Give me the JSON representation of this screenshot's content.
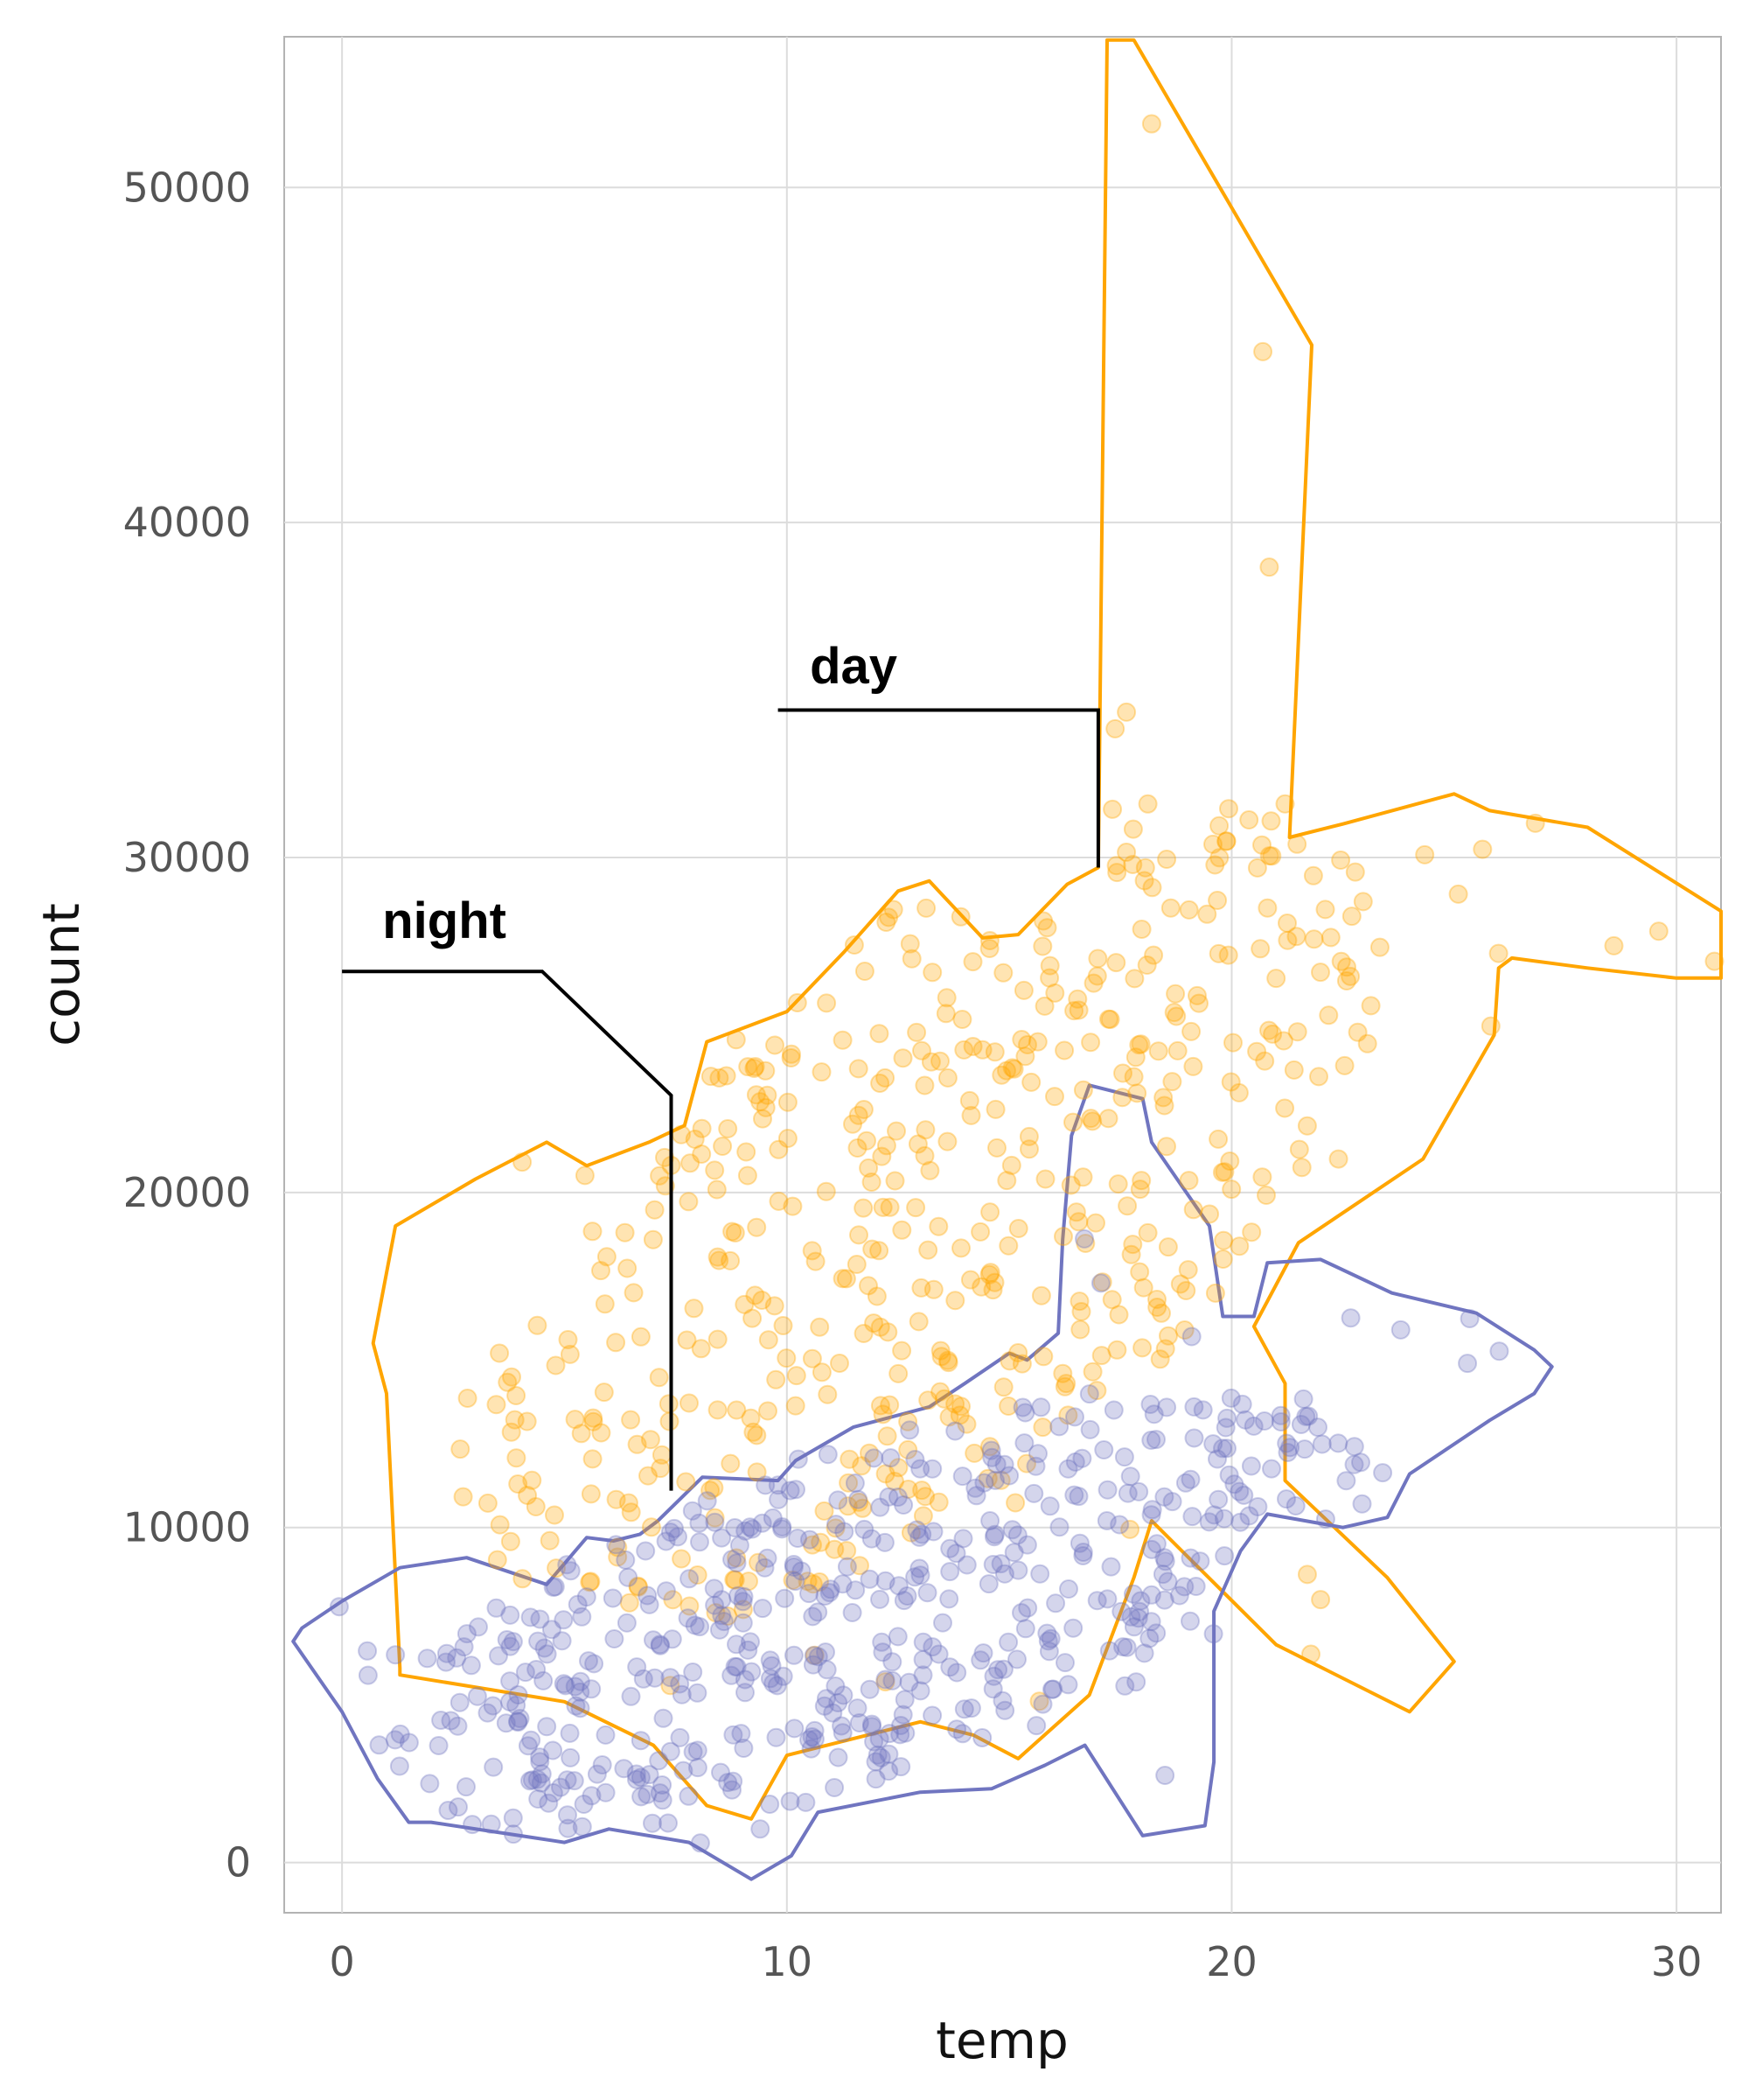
{
  "chart_data": {
    "type": "scatter",
    "title": "",
    "xlabel": "temp",
    "ylabel": "count",
    "xlim": [
      -1.3,
      31
    ],
    "ylim": [
      -1500,
      54500
    ],
    "x_ticks": [
      "0",
      "10",
      "20",
      "30"
    ],
    "y_ticks": [
      "0",
      "10000",
      "20000",
      "30000",
      "40000",
      "50000"
    ],
    "grid": true,
    "legend": "none",
    "series": [
      {
        "name": "day",
        "color": "#FFA500",
        "center": [
          13,
          19500
        ],
        "notable_points": [
          [
            18.2,
            51900
          ],
          [
            20.7,
            45100
          ],
          [
            21.2,
            31600
          ],
          [
            29.6,
            27800
          ],
          [
            22.4,
            21000
          ],
          [
            21.7,
            8600
          ]
        ],
        "hull": [
          [
            17.2,
            54400
          ],
          [
            17.8,
            54400
          ],
          [
            21.8,
            45300
          ],
          [
            21.3,
            30600
          ],
          [
            22.5,
            31000
          ],
          [
            25.0,
            31900
          ],
          [
            25.8,
            31400
          ],
          [
            28.0,
            30900
          ],
          [
            31.0,
            28400
          ],
          [
            31.0,
            26400
          ],
          [
            30.0,
            26400
          ],
          [
            28.0,
            26700
          ],
          [
            26.3,
            27000
          ],
          [
            26.0,
            26700
          ],
          [
            25.9,
            24700
          ],
          [
            24.3,
            21000
          ],
          [
            21.5,
            18500
          ],
          [
            20.5,
            16000
          ],
          [
            21.2,
            14300
          ],
          [
            21.2,
            11400
          ],
          [
            23.5,
            8500
          ],
          [
            25.0,
            6000
          ],
          [
            24.0,
            4500
          ],
          [
            21.0,
            6500
          ],
          [
            18.2,
            10200
          ],
          [
            17.8,
            8500
          ],
          [
            16.8,
            5000
          ],
          [
            15.2,
            3100
          ],
          [
            14.2,
            3800
          ],
          [
            13.0,
            4200
          ],
          [
            10.0,
            3200
          ],
          [
            9.2,
            1300
          ],
          [
            8.2,
            1700
          ],
          [
            7.0,
            3500
          ],
          [
            5.0,
            4800
          ],
          [
            1.3,
            5600
          ],
          [
            1.3,
            5800
          ],
          [
            1.0,
            14000
          ],
          [
            0.7,
            15500
          ],
          [
            1.2,
            19000
          ],
          [
            3.0,
            20400
          ],
          [
            4.6,
            21500
          ],
          [
            5.5,
            20800
          ],
          [
            6.9,
            21500
          ],
          [
            7.7,
            22000
          ],
          [
            8.2,
            24500
          ],
          [
            10.0,
            25400
          ],
          [
            11.3,
            27200
          ],
          [
            12.5,
            29000
          ],
          [
            13.2,
            29300
          ],
          [
            14.4,
            27600
          ],
          [
            15.2,
            27700
          ],
          [
            16.3,
            29200
          ],
          [
            17.0,
            29700
          ]
        ]
      },
      {
        "name": "night",
        "color": "#7075C0",
        "center": [
          12,
          7500
        ],
        "notable_points": [
          [
            25.3,
            14900
          ],
          [
            23.8,
            15900
          ],
          [
            9.4,
            1000
          ],
          [
            18.5,
            2600
          ],
          [
            1.2,
            6200
          ],
          [
            19.1,
            15700
          ]
        ],
        "hull": [
          [
            16.8,
            23200
          ],
          [
            18.0,
            22800
          ],
          [
            18.2,
            21500
          ],
          [
            19.5,
            19000
          ],
          [
            19.8,
            16300
          ],
          [
            20.5,
            16300
          ],
          [
            20.8,
            17900
          ],
          [
            22.0,
            18000
          ],
          [
            23.6,
            17000
          ],
          [
            25.5,
            16400
          ],
          [
            26.8,
            15300
          ],
          [
            27.2,
            14800
          ],
          [
            26.8,
            14000
          ],
          [
            25.8,
            13200
          ],
          [
            24.0,
            11600
          ],
          [
            23.5,
            10300
          ],
          [
            22.5,
            10000
          ],
          [
            20.8,
            10400
          ],
          [
            20.2,
            9300
          ],
          [
            19.6,
            7500
          ],
          [
            19.6,
            5300
          ],
          [
            19.6,
            3000
          ],
          [
            19.4,
            1100
          ],
          [
            18.0,
            800
          ],
          [
            16.7,
            3500
          ],
          [
            15.8,
            2900
          ],
          [
            14.6,
            2200
          ],
          [
            13.0,
            2100
          ],
          [
            10.7,
            1500
          ],
          [
            10.1,
            200
          ],
          [
            9.2,
            -500
          ],
          [
            7.8,
            600
          ],
          [
            6.0,
            1000
          ],
          [
            5.0,
            600
          ],
          [
            4.0,
            800
          ],
          [
            2.0,
            1200
          ],
          [
            1.5,
            1200
          ],
          [
            0.8,
            2500
          ],
          [
            0.0,
            4500
          ],
          [
            -1.1,
            6600
          ],
          [
            -0.9,
            7000
          ],
          [
            0.0,
            7800
          ],
          [
            1.3,
            8800
          ],
          [
            2.8,
            9100
          ],
          [
            4.6,
            8300
          ],
          [
            5.5,
            9700
          ],
          [
            6.1,
            9600
          ],
          [
            6.7,
            9800
          ],
          [
            7.1,
            10200
          ],
          [
            8.1,
            11500
          ],
          [
            9.8,
            11400
          ],
          [
            10.2,
            12000
          ],
          [
            11.5,
            13000
          ],
          [
            13.2,
            13600
          ],
          [
            14.0,
            14300
          ],
          [
            15.0,
            15200
          ],
          [
            15.4,
            15000
          ],
          [
            16.1,
            15800
          ],
          [
            16.2,
            18600
          ],
          [
            16.4,
            21700
          ]
        ]
      }
    ],
    "annotations": [
      {
        "label": "day",
        "series": "day",
        "label_at": [
          11.5,
          35200
        ],
        "leader": [
          [
            9.8,
            34400
          ],
          [
            13.4,
            34400
          ],
          [
            17.0,
            34400
          ],
          [
            17.0,
            29700
          ]
        ]
      },
      {
        "label": "night",
        "series": "night",
        "label_at": [
          2.3,
          27600
        ],
        "leader": [
          [
            0.0,
            26600
          ],
          [
            4.5,
            26600
          ],
          [
            7.4,
            22900
          ],
          [
            7.4,
            11100
          ]
        ]
      }
    ]
  }
}
